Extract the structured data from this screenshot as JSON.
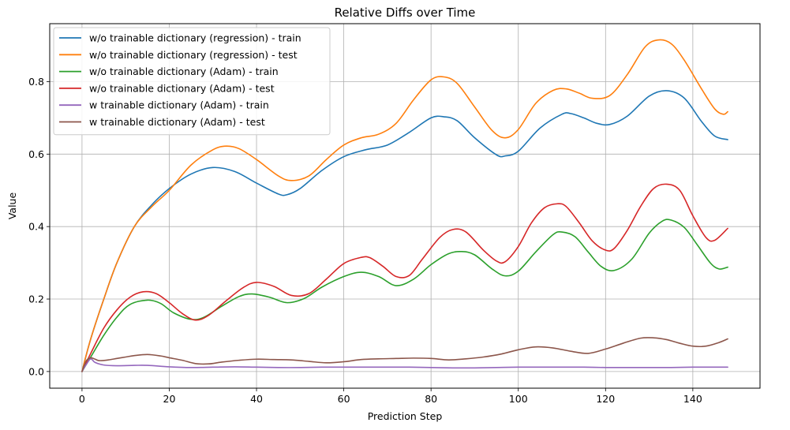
{
  "chart_data": {
    "type": "line",
    "title": "Relative Diffs over Time",
    "xlabel": "Prediction Step",
    "ylabel": "Value",
    "xlim": [
      -7.4,
      155.4
    ],
    "ylim": [
      -0.046,
      0.96
    ],
    "x_ticks": [
      0,
      20,
      40,
      60,
      80,
      100,
      120,
      140
    ],
    "y_ticks": [
      0.0,
      0.2,
      0.4,
      0.6,
      0.8
    ],
    "x_tick_labels": [
      "0",
      "20",
      "40",
      "60",
      "80",
      "100",
      "120",
      "140"
    ],
    "y_tick_labels": [
      "0.0",
      "0.2",
      "0.4",
      "0.6",
      "0.8"
    ],
    "grid": true,
    "legend_position": "upper-left",
    "series": [
      {
        "name": "w/o trainable dictionary (regression) - train",
        "color": "#1f77b4",
        "x": [
          0,
          2,
          5,
          8,
          12,
          16,
          20,
          25,
          30,
          35,
          40,
          45,
          47,
          50,
          55,
          60,
          65,
          70,
          75,
          80,
          83,
          86,
          90,
          95,
          97,
          100,
          105,
          110,
          112,
          115,
          118,
          121,
          125,
          130,
          134,
          138,
          142,
          145,
          148
        ],
        "y": [
          0.0,
          0.09,
          0.2,
          0.3,
          0.4,
          0.46,
          0.505,
          0.545,
          0.563,
          0.552,
          0.52,
          0.49,
          0.488,
          0.505,
          0.555,
          0.593,
          0.612,
          0.625,
          0.66,
          0.7,
          0.703,
          0.692,
          0.645,
          0.598,
          0.595,
          0.608,
          0.672,
          0.71,
          0.712,
          0.7,
          0.685,
          0.682,
          0.705,
          0.76,
          0.775,
          0.755,
          0.69,
          0.65,
          0.64
        ]
      },
      {
        "name": "w/o trainable dictionary (regression) - test",
        "color": "#ff7f0e",
        "x": [
          0,
          2,
          5,
          8,
          12,
          16,
          20,
          25,
          30,
          33,
          36,
          40,
          45,
          48,
          52,
          56,
          60,
          64,
          68,
          72,
          76,
          80,
          83,
          86,
          90,
          94,
          97,
          100,
          104,
          108,
          111,
          114,
          117,
          121,
          125,
          129,
          132,
          135,
          138,
          142,
          145,
          147,
          148
        ],
        "y": [
          0.0,
          0.09,
          0.2,
          0.3,
          0.4,
          0.455,
          0.5,
          0.57,
          0.612,
          0.622,
          0.615,
          0.585,
          0.54,
          0.527,
          0.54,
          0.585,
          0.625,
          0.645,
          0.655,
          0.685,
          0.75,
          0.805,
          0.813,
          0.795,
          0.73,
          0.665,
          0.645,
          0.668,
          0.74,
          0.776,
          0.78,
          0.768,
          0.754,
          0.762,
          0.82,
          0.895,
          0.915,
          0.905,
          0.86,
          0.78,
          0.725,
          0.71,
          0.717
        ]
      },
      {
        "name": "w/o trainable dictionary (Adam) - train",
        "color": "#2ca02c",
        "x": [
          0,
          2,
          5,
          8,
          11,
          15,
          18,
          21,
          25,
          28,
          32,
          36,
          39,
          43,
          47,
          51,
          55,
          60,
          64,
          68,
          72,
          76,
          80,
          84,
          87,
          90,
          94,
          97,
          100,
          104,
          108,
          110,
          113,
          116,
          119,
          122,
          126,
          130,
          133,
          135,
          138,
          141,
          144,
          146,
          148
        ],
        "y": [
          0.0,
          0.04,
          0.1,
          0.15,
          0.185,
          0.197,
          0.188,
          0.162,
          0.144,
          0.15,
          0.18,
          0.207,
          0.214,
          0.205,
          0.19,
          0.202,
          0.233,
          0.262,
          0.274,
          0.262,
          0.237,
          0.255,
          0.295,
          0.325,
          0.331,
          0.322,
          0.283,
          0.264,
          0.277,
          0.33,
          0.378,
          0.385,
          0.372,
          0.33,
          0.29,
          0.279,
          0.31,
          0.382,
          0.415,
          0.418,
          0.398,
          0.35,
          0.3,
          0.283,
          0.288
        ]
      },
      {
        "name": "w/o trainable dictionary (Adam) - test",
        "color": "#d62728",
        "x": [
          0,
          2,
          5,
          8,
          11,
          14,
          17,
          20,
          23,
          26,
          29,
          33,
          37,
          40,
          44,
          48,
          52,
          56,
          60,
          64,
          66,
          69,
          72,
          75,
          78,
          82,
          85,
          88,
          92,
          95,
          97,
          100,
          103,
          106,
          109,
          111,
          114,
          117,
          120,
          122,
          125,
          128,
          131,
          134,
          137,
          140,
          143,
          145,
          148
        ],
        "y": [
          0.0,
          0.05,
          0.12,
          0.17,
          0.205,
          0.22,
          0.215,
          0.19,
          0.16,
          0.142,
          0.155,
          0.195,
          0.232,
          0.246,
          0.235,
          0.21,
          0.215,
          0.255,
          0.298,
          0.315,
          0.314,
          0.29,
          0.262,
          0.265,
          0.31,
          0.37,
          0.392,
          0.385,
          0.335,
          0.305,
          0.303,
          0.345,
          0.41,
          0.452,
          0.463,
          0.455,
          0.41,
          0.36,
          0.335,
          0.34,
          0.39,
          0.455,
          0.505,
          0.517,
          0.5,
          0.43,
          0.37,
          0.362,
          0.395
        ]
      },
      {
        "name": "w trainable dictionary (Adam) - train",
        "color": "#9467bd",
        "x": [
          0,
          1,
          2,
          3,
          5,
          8,
          12,
          15,
          20,
          25,
          30,
          35,
          40,
          45,
          50,
          55,
          60,
          65,
          70,
          75,
          80,
          85,
          90,
          95,
          100,
          105,
          110,
          115,
          120,
          125,
          130,
          135,
          140,
          145,
          148
        ],
        "y": [
          0.0,
          0.02,
          0.035,
          0.025,
          0.018,
          0.016,
          0.017,
          0.017,
          0.013,
          0.011,
          0.012,
          0.013,
          0.012,
          0.011,
          0.011,
          0.012,
          0.012,
          0.012,
          0.012,
          0.012,
          0.011,
          0.01,
          0.01,
          0.011,
          0.012,
          0.012,
          0.012,
          0.012,
          0.011,
          0.011,
          0.011,
          0.011,
          0.012,
          0.012,
          0.012
        ]
      },
      {
        "name": "w trainable dictionary (Adam) - test",
        "color": "#8c564b",
        "x": [
          0,
          1,
          2,
          3,
          4,
          6,
          8,
          10,
          12,
          15,
          18,
          20,
          23,
          26,
          29,
          32,
          36,
          40,
          44,
          48,
          52,
          56,
          60,
          64,
          68,
          72,
          76,
          80,
          84,
          88,
          92,
          96,
          100,
          104,
          108,
          112,
          116,
          120,
          124,
          128,
          131,
          134,
          137,
          140,
          143,
          146,
          148
        ],
        "y": [
          0.0,
          0.03,
          0.038,
          0.034,
          0.03,
          0.032,
          0.036,
          0.04,
          0.044,
          0.047,
          0.043,
          0.038,
          0.031,
          0.022,
          0.021,
          0.026,
          0.031,
          0.034,
          0.033,
          0.032,
          0.028,
          0.024,
          0.027,
          0.033,
          0.035,
          0.036,
          0.037,
          0.036,
          0.032,
          0.035,
          0.04,
          0.048,
          0.06,
          0.068,
          0.065,
          0.056,
          0.05,
          0.062,
          0.078,
          0.092,
          0.093,
          0.088,
          0.078,
          0.07,
          0.07,
          0.08,
          0.09
        ]
      }
    ]
  }
}
